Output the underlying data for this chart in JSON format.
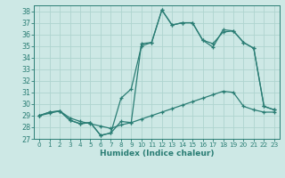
{
  "background_color": "#cde8e5",
  "grid_color": "#afd4cf",
  "line_color": "#2a7d74",
  "xlabel": "Humidex (Indice chaleur)",
  "xlim": [
    -0.5,
    23.5
  ],
  "ylim": [
    27,
    38.5
  ],
  "yticks": [
    27,
    28,
    29,
    30,
    31,
    32,
    33,
    34,
    35,
    36,
    37,
    38
  ],
  "xticks": [
    0,
    1,
    2,
    3,
    4,
    5,
    6,
    7,
    8,
    9,
    10,
    11,
    12,
    13,
    14,
    15,
    16,
    17,
    18,
    19,
    20,
    21,
    22,
    23
  ],
  "line1_x": [
    0,
    1,
    2,
    3,
    4,
    5,
    6,
    7,
    8,
    9,
    10,
    11,
    12,
    13,
    14,
    15,
    16,
    17,
    18,
    19,
    20,
    21,
    22,
    23
  ],
  "line1_y": [
    29.0,
    29.3,
    29.4,
    28.6,
    28.3,
    28.4,
    27.3,
    27.5,
    28.5,
    28.4,
    35.2,
    35.3,
    38.1,
    36.8,
    37.0,
    37.0,
    35.5,
    34.9,
    36.4,
    36.3,
    35.3,
    34.8,
    29.8,
    29.5
  ],
  "line2_x": [
    0,
    1,
    2,
    3,
    4,
    5,
    6,
    7,
    8,
    9,
    10,
    11,
    12,
    13,
    14,
    15,
    16,
    17,
    18,
    19,
    20,
    21,
    22,
    23
  ],
  "line2_y": [
    29.0,
    29.3,
    29.4,
    28.6,
    28.3,
    28.4,
    27.3,
    27.5,
    30.5,
    31.3,
    35.0,
    35.3,
    38.1,
    36.8,
    37.0,
    37.0,
    35.5,
    35.2,
    36.2,
    36.3,
    35.3,
    34.8,
    29.8,
    29.5
  ],
  "line3_x": [
    0,
    1,
    2,
    3,
    4,
    5,
    6,
    7,
    8,
    9,
    10,
    11,
    12,
    13,
    14,
    15,
    16,
    17,
    18,
    19,
    20,
    21,
    22,
    23
  ],
  "line3_y": [
    29.0,
    29.2,
    29.4,
    28.8,
    28.5,
    28.3,
    28.1,
    27.9,
    28.2,
    28.4,
    28.7,
    29.0,
    29.3,
    29.6,
    29.9,
    30.2,
    30.5,
    30.8,
    31.1,
    31.0,
    29.8,
    29.5,
    29.3,
    29.3
  ]
}
